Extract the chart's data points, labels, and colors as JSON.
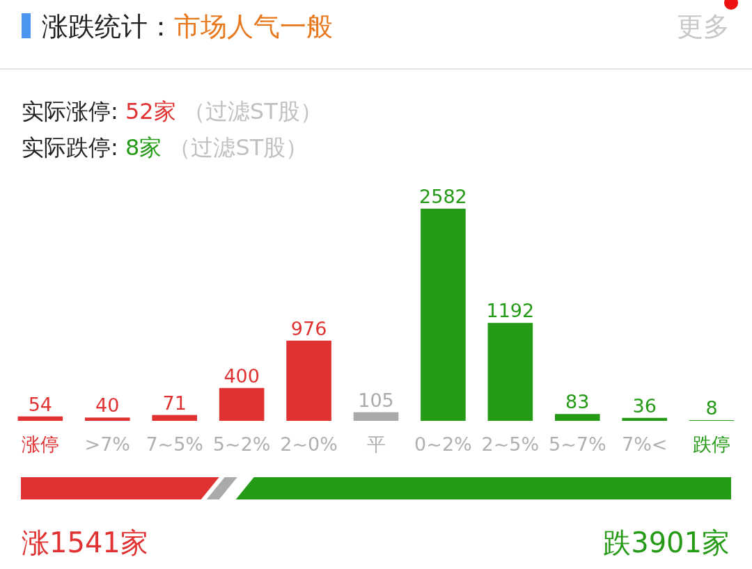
{
  "chart_data": {
    "type": "bar",
    "title": "涨跌统计：",
    "subtitle": "市场人气一般",
    "categories": [
      "涨停",
      ">7%",
      "7~5%",
      "5~2%",
      "2~0%",
      "平",
      "0~2%",
      "2~5%",
      "5~7%",
      "7%<",
      "跌停"
    ],
    "values": [
      54,
      40,
      71,
      400,
      976,
      105,
      2582,
      1192,
      83,
      36,
      8
    ],
    "colors": [
      "#e03232",
      "#e03232",
      "#e03232",
      "#e03232",
      "#e03232",
      "#aaaaaa",
      "#259a17",
      "#259a17",
      "#259a17",
      "#259a17",
      "#259a17"
    ],
    "data_labels": true,
    "annotations": [
      "更多",
      "实际涨停:",
      "52家",
      "（过滤ST股）",
      "实际跌停:",
      "8家",
      "（过滤ST股）",
      "涨1541家",
      "跌3901家"
    ]
  }
}
